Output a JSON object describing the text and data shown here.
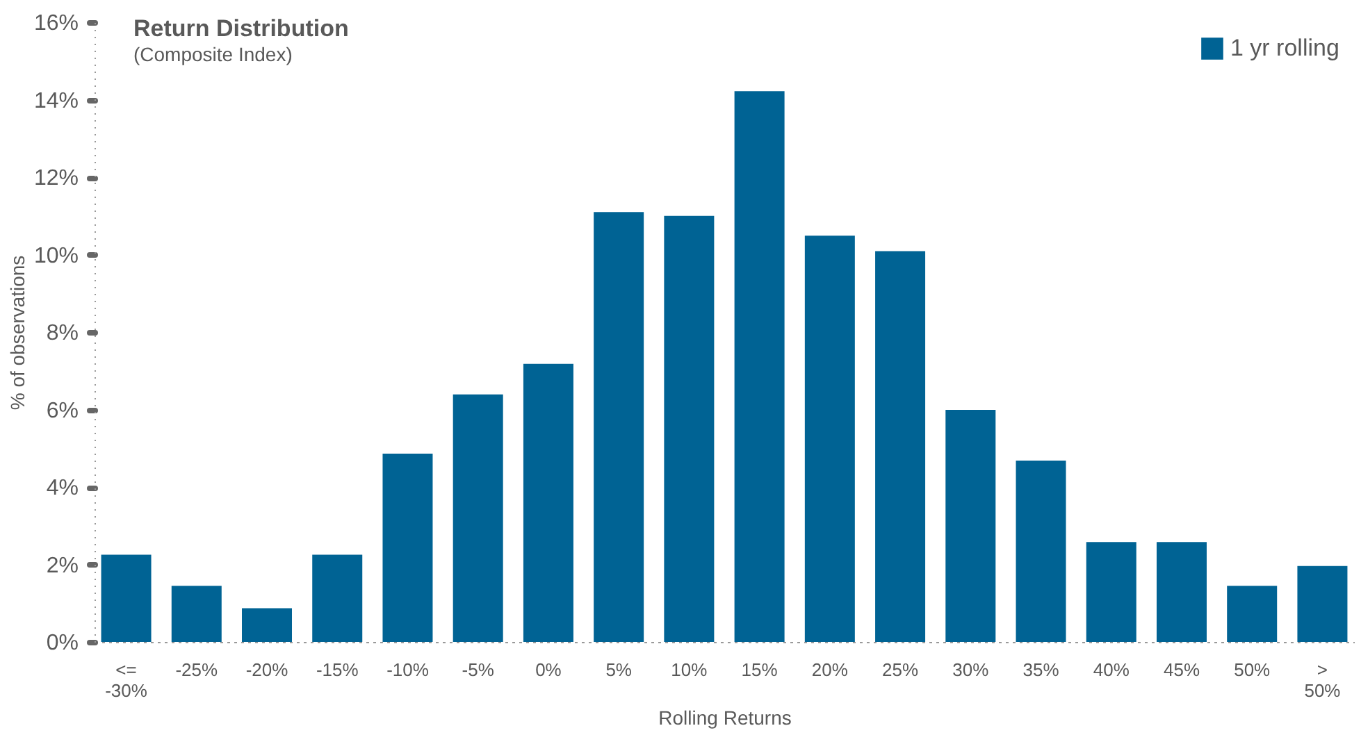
{
  "chart_data": {
    "type": "bar",
    "title": "Return Distribution",
    "subtitle": "(Composite Index)",
    "xlabel": "Rolling Returns",
    "ylabel": "% of observations",
    "categories": [
      "<= -30%",
      "-25%",
      "-20%",
      "-15%",
      "-10%",
      "-5%",
      "0%",
      "5%",
      "10%",
      "15%",
      "20%",
      "25%",
      "30%",
      "35%",
      "40%",
      "45%",
      "50%",
      "> 50%"
    ],
    "series": [
      {
        "name": "1 yr rolling",
        "color": "#006394",
        "values": [
          2.25,
          1.45,
          0.87,
          2.25,
          4.86,
          6.39,
          7.18,
          11.1,
          11.0,
          14.22,
          10.49,
          10.09,
          5.99,
          4.68,
          2.58,
          2.58,
          1.45,
          1.96
        ]
      }
    ],
    "ylim": [
      0,
      16
    ],
    "yticks": [
      {
        "value": 0,
        "label": "0%"
      },
      {
        "value": 2,
        "label": "2%"
      },
      {
        "value": 4,
        "label": "4%"
      },
      {
        "value": 6,
        "label": "6%"
      },
      {
        "value": 8,
        "label": "8%"
      },
      {
        "value": 10,
        "label": "10%"
      },
      {
        "value": 12,
        "label": "12%"
      },
      {
        "value": 14,
        "label": "14%"
      },
      {
        "value": 16,
        "label": "16%"
      }
    ],
    "grid": false,
    "legend": "top right"
  }
}
